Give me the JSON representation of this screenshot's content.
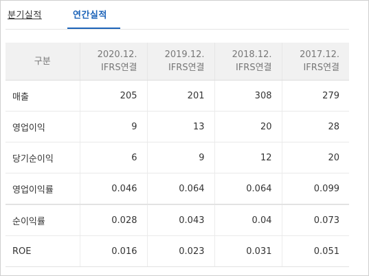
{
  "tabs": [
    {
      "label": "분기실적",
      "active": false
    },
    {
      "label": "연간실적",
      "active": true
    }
  ],
  "colors": {
    "accent": "#1a62b8",
    "header_bg": "#f1f1f1"
  },
  "table": {
    "header": {
      "gubun": "구분",
      "columns": [
        {
          "period": "2020.12.",
          "basis": "IFRS연결"
        },
        {
          "period": "2019.12.",
          "basis": "IFRS연결"
        },
        {
          "period": "2018.12.",
          "basis": "IFRS연결"
        },
        {
          "period": "2017.12.",
          "basis": "IFRS연결"
        }
      ]
    },
    "rows": [
      {
        "label": "매출",
        "values": [
          "205",
          "201",
          "308",
          "279"
        ]
      },
      {
        "label": "영업이익",
        "values": [
          "9",
          "13",
          "20",
          "28"
        ]
      },
      {
        "label": "당기순이익",
        "values": [
          "6",
          "9",
          "12",
          "20"
        ]
      },
      {
        "label": "영업이익률",
        "values": [
          "0.046",
          "0.064",
          "0.064",
          "0.099"
        ]
      },
      {
        "label": "순이익률",
        "values": [
          "0.028",
          "0.043",
          "0.04",
          "0.073"
        ]
      },
      {
        "label": "ROE",
        "values": [
          "0.016",
          "0.023",
          "0.031",
          "0.051"
        ]
      }
    ]
  }
}
